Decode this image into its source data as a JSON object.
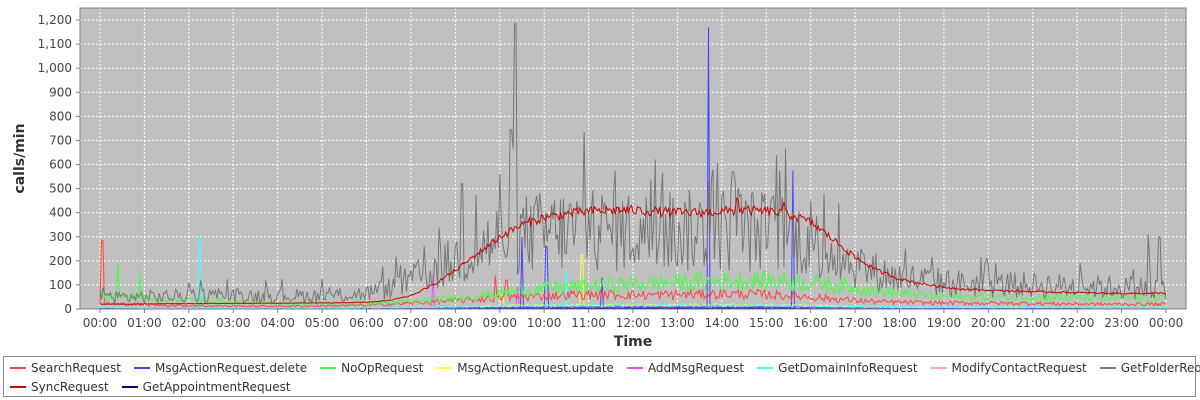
{
  "chart_data": {
    "type": "line",
    "title": "",
    "xlabel": "Time",
    "ylabel": "calls/min",
    "ylim": [
      0,
      1250
    ],
    "xlim": [
      "00:00",
      "24:00"
    ],
    "grid": true,
    "legend_position": "bottom",
    "plot_background": "#c0c0c0",
    "yticks": [
      "0",
      "100",
      "200",
      "300",
      "400",
      "500",
      "600",
      "700",
      "800",
      "900",
      "1,000",
      "1,100",
      "1,200"
    ],
    "xticks": [
      "00:00",
      "01:00",
      "02:00",
      "03:00",
      "04:00",
      "05:00",
      "06:00",
      "07:00",
      "08:00",
      "09:00",
      "10:00",
      "11:00",
      "12:00",
      "13:00",
      "14:00",
      "15:00",
      "16:00",
      "17:00",
      "18:00",
      "19:00",
      "20:00",
      "21:00",
      "22:00",
      "23:00",
      "00:00"
    ],
    "x_hours": [
      0,
      0.5,
      1,
      1.5,
      2,
      2.5,
      3,
      3.5,
      4,
      4.5,
      5,
      5.5,
      6,
      6.5,
      7,
      7.5,
      8,
      8.5,
      9,
      9.5,
      10,
      10.5,
      11,
      11.5,
      12,
      12.5,
      13,
      13.5,
      14,
      14.5,
      15,
      15.5,
      16,
      16.5,
      17,
      17.5,
      18,
      18.5,
      19,
      19.5,
      20,
      20.5,
      21,
      21.5,
      22,
      22.5,
      23,
      23.5,
      24
    ],
    "series": [
      {
        "name": "SearchRequest",
        "color": "#ff4444",
        "values": [
          25,
          20,
          18,
          15,
          14,
          13,
          12,
          12,
          12,
          12,
          13,
          14,
          16,
          20,
          24,
          30,
          35,
          40,
          45,
          50,
          55,
          58,
          60,
          60,
          58,
          58,
          60,
          60,
          62,
          62,
          60,
          55,
          50,
          42,
          36,
          30,
          28,
          26,
          25,
          25,
          24,
          24,
          23,
          22,
          21,
          20,
          20,
          20,
          20
        ],
        "spikes": [
          {
            "x": 0.05,
            "y": 285
          },
          {
            "x": 8.9,
            "y": 140
          },
          {
            "x": 9.15,
            "y": 120
          }
        ]
      },
      {
        "name": "MsgActionRequest.delete",
        "color": "#4444ff",
        "values": [
          2,
          1,
          1,
          1,
          1,
          1,
          1,
          1,
          1,
          1,
          1,
          1,
          2,
          2,
          3,
          3,
          4,
          5,
          6,
          6,
          7,
          7,
          7,
          7,
          7,
          7,
          7,
          7,
          7,
          7,
          7,
          6,
          5,
          4,
          3,
          3,
          2,
          2,
          2,
          2,
          2,
          2,
          2,
          2,
          2,
          1,
          1,
          1,
          1
        ],
        "spikes": [
          {
            "x": 13.7,
            "y": 1170
          },
          {
            "x": 15.6,
            "y": 575
          },
          {
            "x": 9.5,
            "y": 300
          },
          {
            "x": 10.05,
            "y": 260
          },
          {
            "x": 11.3,
            "y": 130
          }
        ]
      },
      {
        "name": "NoOpRequest",
        "color": "#44ff44",
        "values": [
          60,
          55,
          45,
          40,
          38,
          35,
          30,
          28,
          26,
          25,
          25,
          25,
          26,
          28,
          32,
          38,
          45,
          55,
          65,
          75,
          85,
          90,
          95,
          100,
          105,
          108,
          110,
          112,
          115,
          118,
          118,
          115,
          110,
          100,
          90,
          75,
          65,
          58,
          52,
          50,
          50,
          50,
          48,
          48,
          46,
          45,
          45,
          44,
          45
        ],
        "spikes": [
          {
            "x": 0.4,
            "y": 190
          },
          {
            "x": 0.9,
            "y": 150
          }
        ]
      },
      {
        "name": "MsgActionRequest.update",
        "color": "#ffff44",
        "values": [
          3,
          2,
          2,
          2,
          2,
          2,
          2,
          2,
          2,
          2,
          2,
          2,
          3,
          3,
          4,
          5,
          8,
          10,
          12,
          14,
          15,
          15,
          16,
          16,
          16,
          16,
          16,
          16,
          16,
          16,
          16,
          15,
          14,
          12,
          10,
          8,
          6,
          5,
          4,
          4,
          4,
          4,
          4,
          3,
          3,
          3,
          3,
          3,
          3
        ],
        "spikes": [
          {
            "x": 10.85,
            "y": 225
          },
          {
            "x": 9.05,
            "y": 60
          }
        ]
      },
      {
        "name": "AddMsgRequest",
        "color": "#ff44ff",
        "values": [
          3,
          2,
          2,
          2,
          2,
          2,
          2,
          2,
          2,
          2,
          2,
          2,
          3,
          3,
          4,
          5,
          6,
          7,
          8,
          9,
          10,
          10,
          10,
          10,
          10,
          10,
          10,
          10,
          10,
          10,
          10,
          9,
          8,
          7,
          6,
          5,
          4,
          4,
          4,
          3,
          3,
          3,
          3,
          3,
          3,
          3,
          3,
          3,
          3
        ],
        "spikes": [
          {
            "x": 7.5,
            "y": 145
          },
          {
            "x": 9.4,
            "y": 95
          }
        ]
      },
      {
        "name": "GetDomainInfoRequest",
        "color": "#44ffff",
        "values": [
          8,
          7,
          6,
          5,
          5,
          5,
          5,
          5,
          5,
          5,
          5,
          5,
          6,
          6,
          7,
          8,
          9,
          10,
          12,
          13,
          14,
          15,
          15,
          15,
          15,
          15,
          15,
          15,
          15,
          15,
          15,
          14,
          13,
          12,
          11,
          10,
          9,
          8,
          8,
          8,
          8,
          8,
          8,
          8,
          8,
          8,
          8,
          8,
          8
        ],
        "spikes": [
          {
            "x": 2.25,
            "y": 295
          },
          {
            "x": 10.5,
            "y": 170
          }
        ]
      },
      {
        "name": "ModifyContactRequest",
        "color": "#ffaaaa",
        "values": [
          2,
          2,
          2,
          2,
          2,
          2,
          2,
          2,
          2,
          2,
          2,
          2,
          2,
          2,
          2,
          3,
          3,
          4,
          4,
          5,
          5,
          5,
          5,
          5,
          5,
          5,
          5,
          5,
          5,
          5,
          5,
          5,
          4,
          4,
          3,
          3,
          3,
          3,
          3,
          3,
          3,
          3,
          3,
          3,
          3,
          3,
          3,
          3,
          3
        ],
        "spikes": []
      },
      {
        "name": "GetFolderRequest",
        "color": "#777777",
        "values": [
          55,
          50,
          50,
          52,
          55,
          55,
          55,
          55,
          55,
          55,
          55,
          58,
          65,
          85,
          120,
          160,
          200,
          250,
          290,
          310,
          320,
          325,
          330,
          325,
          320,
          320,
          320,
          325,
          330,
          330,
          320,
          310,
          280,
          230,
          185,
          150,
          130,
          120,
          110,
          105,
          100,
          100,
          100,
          98,
          95,
          92,
          90,
          88,
          90
        ],
        "spikes": [
          {
            "x": 9.35,
            "y": 1185
          },
          {
            "x": 9.25,
            "y": 745
          },
          {
            "x": 10.9,
            "y": 735
          },
          {
            "x": 9.0,
            "y": 560
          },
          {
            "x": 11.6,
            "y": 575
          },
          {
            "x": 14.25,
            "y": 570
          },
          {
            "x": 8.15,
            "y": 520
          },
          {
            "x": 13.7,
            "y": 530
          },
          {
            "x": 16.3,
            "y": 480
          },
          {
            "x": 23.6,
            "y": 310
          },
          {
            "x": 23.85,
            "y": 300
          }
        ]
      },
      {
        "name": "SyncRequest",
        "color": "#cc0000",
        "values": [
          20,
          20,
          21,
          22,
          22,
          23,
          23,
          24,
          24,
          25,
          25,
          26,
          28,
          35,
          55,
          100,
          160,
          230,
          300,
          350,
          380,
          395,
          405,
          410,
          410,
          405,
          400,
          400,
          405,
          410,
          405,
          395,
          360,
          290,
          215,
          160,
          125,
          105,
          90,
          82,
          78,
          75,
          72,
          70,
          68,
          66,
          65,
          65,
          66
        ],
        "spikes": [
          {
            "x": 14.35,
            "y": 460
          },
          {
            "x": 15.4,
            "y": 445
          }
        ]
      },
      {
        "name": "GetAppointmentRequest",
        "color": "#000088",
        "values": [
          1,
          1,
          1,
          1,
          1,
          1,
          1,
          1,
          1,
          1,
          1,
          1,
          1,
          1,
          1,
          2,
          2,
          2,
          3,
          3,
          3,
          3,
          3,
          3,
          3,
          3,
          3,
          3,
          3,
          3,
          3,
          3,
          2,
          2,
          2,
          1,
          1,
          1,
          1,
          1,
          1,
          1,
          1,
          1,
          1,
          1,
          1,
          1,
          1
        ],
        "spikes": []
      }
    ]
  }
}
